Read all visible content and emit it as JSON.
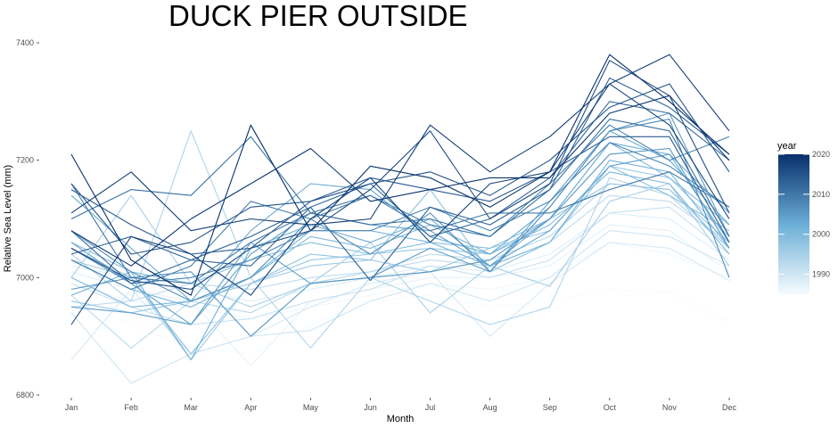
{
  "chart_data": {
    "type": "line",
    "title": "DUCK PIER OUTSIDE",
    "xlabel": "Month",
    "ylabel": "Relative Sea Level (mm)",
    "categories": [
      "Jan",
      "Feb",
      "Mar",
      "Apr",
      "May",
      "Jun",
      "Jul",
      "Aug",
      "Sep",
      "Oct",
      "Nov",
      "Dec"
    ],
    "ylim": [
      6800,
      7420
    ],
    "yticks": [
      6800,
      7000,
      7200,
      7400
    ],
    "grid": false,
    "legend": {
      "title": "year",
      "position": "right",
      "range": [
        1985,
        2020
      ],
      "ticks": [
        1990,
        2000,
        2010,
        2020
      ],
      "color_low": "#f7fbff",
      "color_mid": "#6baed6",
      "color_high": "#08306b"
    },
    "series": [
      {
        "year": 1985,
        "values": [
          6960,
          6920,
          6880,
          6870,
          6920,
          6960,
          6970,
          6950,
          6960,
          6980,
          6975,
          6925
        ]
      },
      {
        "year": 1986,
        "values": [
          6990,
          6960,
          6950,
          6930,
          6950,
          6970,
          6990,
          6980,
          7000,
          7060,
          7040,
          7000
        ]
      },
      {
        "year": 1987,
        "values": [
          7010,
          6980,
          6960,
          6850,
          6960,
          6980,
          7000,
          7000,
          7020,
          7090,
          7080,
          7010
        ]
      },
      {
        "year": 1988,
        "values": [
          7020,
          7000,
          6980,
          6960,
          6980,
          7000,
          7020,
          7010,
          7040,
          7110,
          7100,
          7030
        ]
      },
      {
        "year": 1989,
        "values": [
          6860,
          6980,
          6870,
          6900,
          6950,
          6990,
          7010,
          6900,
          6990,
          7060,
          7050,
          6995
        ]
      },
      {
        "year": 1990,
        "values": [
          6940,
          6820,
          6870,
          6900,
          6910,
          6960,
          6990,
          6960,
          7000,
          7080,
          7070,
          7020
        ]
      },
      {
        "year": 1991,
        "values": [
          6990,
          6950,
          6920,
          6930,
          6960,
          6980,
          7020,
          7000,
          7030,
          7110,
          7120,
          7040
        ]
      },
      {
        "year": 1992,
        "values": [
          6950,
          6960,
          6990,
          6980,
          7000,
          7010,
          7030,
          7020,
          7060,
          7140,
          7130,
          7060
        ]
      },
      {
        "year": 1993,
        "values": [
          6970,
          6880,
          6960,
          6940,
          6990,
          7010,
          7040,
          7030,
          7070,
          7160,
          7150,
          7050
        ]
      },
      {
        "year": 1994,
        "values": [
          7040,
          6960,
          7250,
          7000,
          6880,
          7000,
          6960,
          6920,
          6950,
          7170,
          7140,
          7050
        ]
      },
      {
        "year": 1995,
        "values": [
          7000,
          7140,
          6990,
          6950,
          6990,
          7060,
          6940,
          7020,
          6985,
          7130,
          7160,
          7020
        ]
      },
      {
        "year": 1996,
        "values": [
          7030,
          7000,
          6860,
          6990,
          7020,
          7030,
          7010,
          7050,
          7080,
          7190,
          7170,
          7070
        ]
      },
      {
        "year": 1997,
        "values": [
          6960,
          6940,
          6960,
          6990,
          7030,
          7040,
          7050,
          7040,
          7100,
          7160,
          7150,
          7060
        ]
      },
      {
        "year": 1998,
        "values": [
          7050,
          7000,
          6870,
          6990,
          7040,
          7030,
          7150,
          7010,
          7060,
          7190,
          7140,
          7080
        ]
      },
      {
        "year": 1999,
        "values": [
          7060,
          7010,
          6990,
          7030,
          7060,
          7040,
          7060,
          7050,
          7100,
          7230,
          7170,
          7090
        ]
      },
      {
        "year": 2000,
        "values": [
          7000,
          6950,
          6960,
          7000,
          7070,
          7050,
          7090,
          7040,
          7090,
          7180,
          7160,
          7040
        ]
      },
      {
        "year": 2001,
        "values": [
          7030,
          6980,
          6950,
          7000,
          7080,
          7080,
          7060,
          7020,
          7060,
          7200,
          7180,
          7050
        ]
      },
      {
        "year": 2002,
        "values": [
          6970,
          7010,
          6860,
          7050,
          7090,
          7060,
          7100,
          7020,
          7100,
          7230,
          7210,
          7060
        ]
      },
      {
        "year": 2003,
        "values": [
          7140,
          7050,
          6960,
          7080,
          7160,
          7150,
          7070,
          7040,
          7120,
          7250,
          7200,
          7090
        ]
      },
      {
        "year": 2004,
        "values": [
          7060,
          6990,
          6920,
          7040,
          7110,
          7090,
          7080,
          7020,
          7080,
          7190,
          7210,
          7110
        ]
      },
      {
        "year": 2005,
        "values": [
          6950,
          6940,
          6920,
          7060,
          6990,
          7000,
          7050,
          7010,
          7130,
          7250,
          7280,
          7070
        ]
      },
      {
        "year": 2006,
        "values": [
          6980,
          7000,
          7010,
          6900,
          6990,
          7000,
          7010,
          7030,
          7100,
          7210,
          7220,
          7050
        ]
      },
      {
        "year": 2007,
        "values": [
          7080,
          7010,
          6960,
          7000,
          7100,
          7040,
          7110,
          7010,
          7120,
          7250,
          7270,
          7000
        ]
      },
      {
        "year": 2008,
        "values": [
          7050,
          6990,
          7000,
          7030,
          7080,
          7080,
          7120,
          7080,
          7130,
          7230,
          7190,
          7120
        ]
      },
      {
        "year": 2009,
        "values": [
          7030,
          6980,
          7020,
          7130,
          7100,
          7140,
          7090,
          7070,
          7160,
          7260,
          7200,
          7240
        ]
      },
      {
        "year": 2010,
        "values": [
          7160,
          7000,
          6990,
          7060,
          7110,
          7140,
          7080,
          7110,
          7110,
          7150,
          7180,
          7120
        ]
      },
      {
        "year": 2011,
        "values": [
          7100,
          7150,
          7140,
          7240,
          7110,
          7090,
          7100,
          7070,
          7150,
          7270,
          7250,
          7070
        ]
      },
      {
        "year": 2012,
        "values": [
          7080,
          6990,
          7030,
          7020,
          7120,
          7160,
          7070,
          7100,
          7170,
          7300,
          7280,
          7200
        ]
      },
      {
        "year": 2013,
        "values": [
          7040,
          7070,
          7030,
          7070,
          7120,
          6995,
          7120,
          7090,
          7150,
          7340,
          7290,
          7210
        ]
      },
      {
        "year": 2014,
        "values": [
          7150,
          7090,
          7040,
          7050,
          7130,
          7170,
          7150,
          7130,
          7180,
          7240,
          7240,
          7060
        ]
      },
      {
        "year": 2015,
        "values": [
          7160,
          7040,
          7060,
          7120,
          7130,
          7160,
          7180,
          7140,
          7200,
          7290,
          7330,
          7180
        ]
      },
      {
        "year": 2016,
        "values": [
          7050,
          6995,
          6980,
          7050,
          7080,
          7150,
          7250,
          7100,
          7160,
          7370,
          7310,
          7110
        ]
      },
      {
        "year": 2017,
        "values": [
          6920,
          7070,
          7040,
          6970,
          7100,
          7170,
          7060,
          7160,
          7180,
          7330,
          7260,
          7100
        ]
      },
      {
        "year": 2018,
        "values": [
          7110,
          7180,
          7080,
          7100,
          7090,
          7100,
          7260,
          7180,
          7240,
          7330,
          7380,
          7250
        ]
      },
      {
        "year": 2019,
        "values": [
          7080,
          7020,
          7100,
          7160,
          7220,
          7130,
          7150,
          7170,
          7170,
          7280,
          7310,
          7200
        ]
      },
      {
        "year": 2020,
        "values": [
          7210,
          7030,
          6970,
          7260,
          7080,
          7190,
          7170,
          7120,
          7180,
          7380,
          7300,
          7210
        ]
      }
    ]
  }
}
